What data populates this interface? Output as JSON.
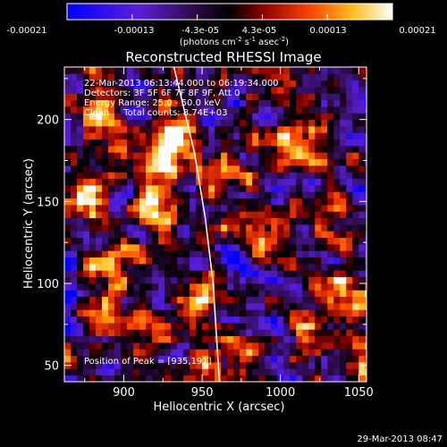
{
  "chart_data": {
    "type": "heatmap",
    "title": "Reconstructed RHESSI Image",
    "xlabel": "Heliocentric X (arcsec)",
    "ylabel": "Heliocentric Y (arcsec)",
    "xlim": [
      862,
      1055
    ],
    "ylim": [
      40,
      232
    ],
    "xticks": [
      900,
      950,
      1000,
      1050
    ],
    "yticks": [
      50,
      100,
      150,
      200
    ],
    "colorbar": {
      "ticks": [
        "-0.00021",
        "-0.00013",
        "-4.3e-05",
        "4.3e-05",
        "0.00013",
        "0.00021"
      ],
      "unit_main": "(photons cm",
      "unit_exp1": "-2",
      "unit_s": " s",
      "unit_exp2": "-1",
      "unit_asec": " asec",
      "unit_exp3": "-2",
      "unit_close": ")",
      "range": [
        -0.00021,
        0.00021
      ]
    },
    "info_lines": [
      "22-Mar-2013 06:13:44.000 to 06:19:34.000",
      "Detectors: 3F 5F 6F 7F 8F 9F, Att 0",
      "Energy Range: 25.0 - 50.0 keV",
      "Clean     Total counts: 8.74E+03"
    ],
    "peak_label": "Position of Peak = [935,191]",
    "peak": [
      935,
      191
    ],
    "sources": [
      {
        "x": 935,
        "y": 191,
        "flux": 0.00021
      },
      {
        "x": 920,
        "y": 147,
        "flux": 0.00019
      },
      {
        "x": 1010,
        "y": 185,
        "flux": 0.00015
      },
      {
        "x": 925,
        "y": 170,
        "flux": 0.00012
      },
      {
        "x": 965,
        "y": 170,
        "flux": 0.0001
      },
      {
        "x": 880,
        "y": 150,
        "flux": 9e-05
      },
      {
        "x": 1040,
        "y": 100,
        "flux": 0.00012
      },
      {
        "x": 890,
        "y": 80,
        "flux": 0.0001
      },
      {
        "x": 895,
        "y": 110,
        "flux": 9e-05
      },
      {
        "x": 945,
        "y": 95,
        "flux": 0.00011
      },
      {
        "x": 960,
        "y": 60,
        "flux": 8e-05
      },
      {
        "x": 1015,
        "y": 80,
        "flux": 9e-05
      },
      {
        "x": 1000,
        "y": 215,
        "flux": 8e-05
      },
      {
        "x": 880,
        "y": 205,
        "flux": 8e-05
      },
      {
        "x": 1035,
        "y": 145,
        "flux": 8e-05
      },
      {
        "x": 1045,
        "y": 60,
        "flux": 9e-05
      },
      {
        "x": 985,
        "y": 130,
        "flux": 7e-05
      }
    ],
    "limb_curve": [
      [
        932,
        232
      ],
      [
        945,
        180
      ],
      [
        952,
        140
      ],
      [
        957,
        100
      ],
      [
        961,
        40
      ]
    ],
    "timestamp": "29-Mar-2013 08:47"
  }
}
